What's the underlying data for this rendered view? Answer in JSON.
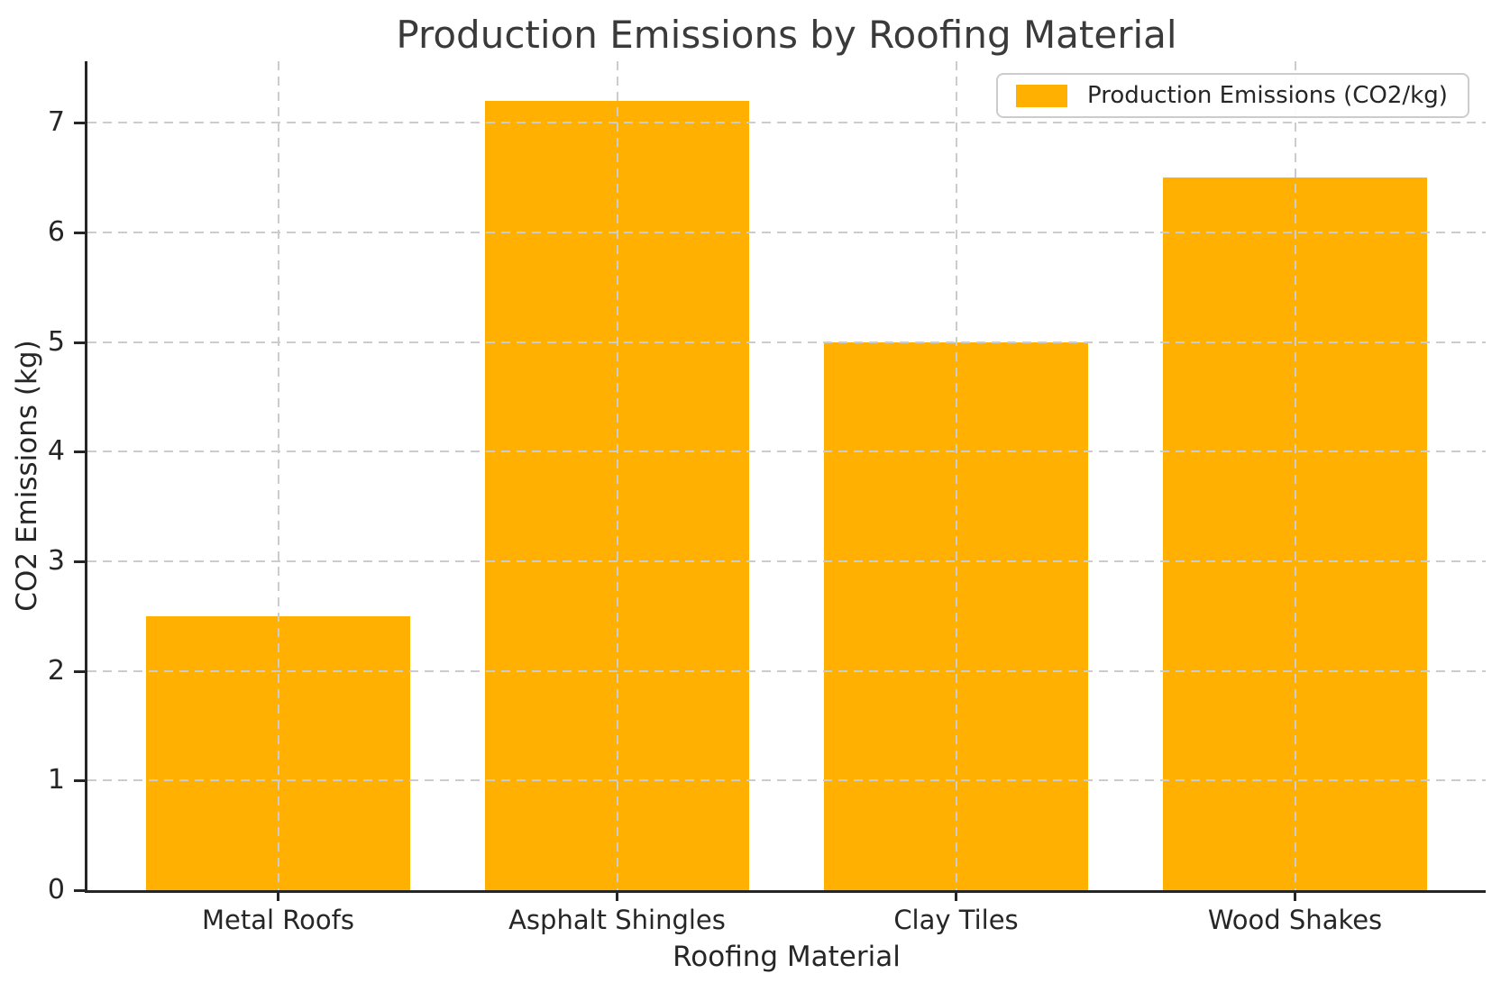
{
  "title": "Production Emissions by Roofing Material",
  "chart_data": {
    "type": "bar",
    "title": "Production Emissions by Roofing Material",
    "categories": [
      "Metal Roofs",
      "Asphalt Shingles",
      "Clay Tiles",
      "Wood Shakes"
    ],
    "series": [
      {
        "name": "Production Emissions (CO2/kg)",
        "values": [
          2.5,
          7.2,
          5.0,
          6.5
        ],
        "color": "#FFB000"
      }
    ],
    "xlabel": "Roofing Material",
    "ylabel": "CO2 Emissions (kg)",
    "ylim": [
      0,
      7.56
    ],
    "yticks": [
      0,
      1,
      2,
      3,
      4,
      5,
      6,
      7
    ],
    "y_tick_labels": [
      "0",
      "1",
      "2",
      "3",
      "4",
      "5",
      "6",
      "7"
    ],
    "grid": {
      "show": true,
      "style": "dashed",
      "color": "#CCCCCC",
      "axisbelow": false
    },
    "legend": {
      "position": "upper right",
      "entries": [
        {
          "label": "Production Emissions (CO2/kg)",
          "color": "#FFB000"
        }
      ]
    },
    "bar_width_fraction": 0.78
  },
  "colors": {
    "bar": "#FFB000",
    "grid": "#CCCCCC",
    "axis": "#262626",
    "text": "#3A3A3A",
    "legend_border": "#CCCCCC",
    "background": "#FFFFFF"
  }
}
